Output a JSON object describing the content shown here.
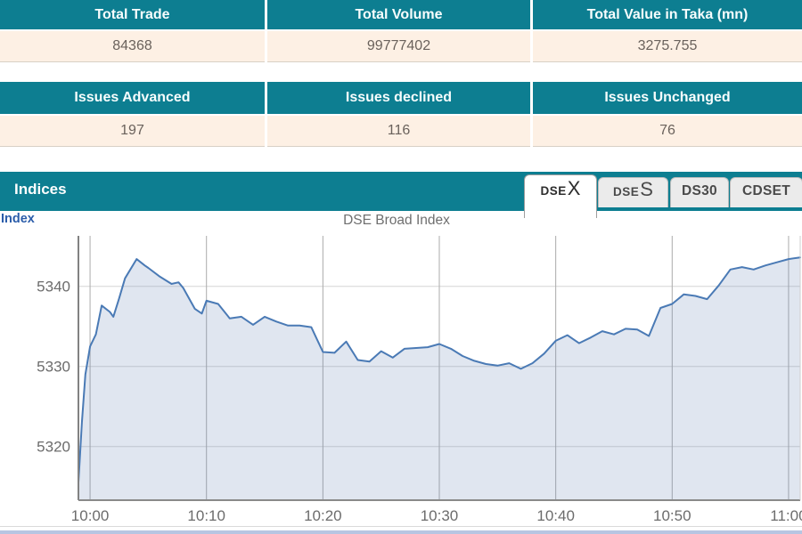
{
  "summary_table": {
    "headers": [
      "Total Trade",
      "Total Volume",
      "Total Value in Taka (mn)"
    ],
    "values": [
      "84368",
      "99777402",
      "3275.755"
    ]
  },
  "issues_table": {
    "headers": [
      "Issues Advanced",
      "Issues declined",
      "Issues Unchanged"
    ],
    "values": [
      "197",
      "116",
      "76"
    ]
  },
  "indices": {
    "title": "Indices",
    "index_label": "Index",
    "tabs": [
      {
        "small": "DSE",
        "large": "X",
        "active": true
      },
      {
        "small": "DSE",
        "large": "S",
        "active": false
      },
      {
        "small": "DS30",
        "large": "",
        "active": false
      },
      {
        "small": "CDSET",
        "large": "",
        "active": false
      }
    ]
  },
  "chart_data": {
    "type": "area",
    "title": "DSE Broad Index",
    "xlabel": "",
    "ylabel": "",
    "legend": false,
    "grid": true,
    "x_tick_labels": [
      "10:00",
      "10:10",
      "10:20",
      "10:30",
      "10:40",
      "10:50",
      "11:00"
    ],
    "x_tick_minutes": [
      0,
      10,
      20,
      30,
      40,
      50,
      60
    ],
    "y_ticks": [
      5320,
      5330,
      5340
    ],
    "ylim": [
      5313.3,
      5346.3
    ],
    "xlim_minutes": [
      -1,
      61
    ],
    "series": [
      {
        "name": "DSE Broad Index",
        "points": [
          [
            -1,
            5315.5
          ],
          [
            -0.7,
            5323.0
          ],
          [
            -0.4,
            5329.0
          ],
          [
            0,
            5332.5
          ],
          [
            0.5,
            5334.0
          ],
          [
            1,
            5337.6
          ],
          [
            1.7,
            5336.8
          ],
          [
            2,
            5336.2
          ],
          [
            2.5,
            5338.5
          ],
          [
            3,
            5341.0
          ],
          [
            4,
            5343.4
          ],
          [
            4.7,
            5342.6
          ],
          [
            5,
            5342.3
          ],
          [
            6,
            5341.2
          ],
          [
            7,
            5340.3
          ],
          [
            7.6,
            5340.5
          ],
          [
            8,
            5339.8
          ],
          [
            9,
            5337.2
          ],
          [
            9.6,
            5336.6
          ],
          [
            10,
            5338.2
          ],
          [
            11,
            5337.8
          ],
          [
            12,
            5336.0
          ],
          [
            13,
            5336.2
          ],
          [
            14,
            5335.2
          ],
          [
            15,
            5336.2
          ],
          [
            16,
            5335.6
          ],
          [
            17,
            5335.1
          ],
          [
            18,
            5335.1
          ],
          [
            19,
            5334.9
          ],
          [
            20,
            5331.8
          ],
          [
            21,
            5331.7
          ],
          [
            22,
            5333.1
          ],
          [
            23,
            5330.8
          ],
          [
            24,
            5330.6
          ],
          [
            25,
            5331.9
          ],
          [
            26,
            5331.1
          ],
          [
            27,
            5332.2
          ],
          [
            28,
            5332.3
          ],
          [
            29,
            5332.4
          ],
          [
            30,
            5332.8
          ],
          [
            31,
            5332.2
          ],
          [
            32,
            5331.3
          ],
          [
            33,
            5330.7
          ],
          [
            34,
            5330.3
          ],
          [
            35,
            5330.1
          ],
          [
            36,
            5330.4
          ],
          [
            37,
            5329.7
          ],
          [
            38,
            5330.4
          ],
          [
            39,
            5331.6
          ],
          [
            40,
            5333.2
          ],
          [
            41,
            5333.9
          ],
          [
            42,
            5332.9
          ],
          [
            43,
            5333.6
          ],
          [
            44,
            5334.4
          ],
          [
            45,
            5334.0
          ],
          [
            46,
            5334.7
          ],
          [
            47,
            5334.6
          ],
          [
            48,
            5333.8
          ],
          [
            49,
            5337.3
          ],
          [
            50,
            5337.8
          ],
          [
            51,
            5339.0
          ],
          [
            52,
            5338.8
          ],
          [
            53,
            5338.4
          ],
          [
            54,
            5340.1
          ],
          [
            55,
            5342.1
          ],
          [
            56,
            5342.4
          ],
          [
            57,
            5342.1
          ],
          [
            58,
            5342.6
          ],
          [
            59,
            5343.0
          ],
          [
            60,
            5343.4
          ],
          [
            61,
            5343.6
          ]
        ]
      }
    ]
  },
  "colors": {
    "teal": "#0d7e91",
    "cream": "#fdf0e4",
    "tab_inactive_bg": "#ebebeb",
    "chart_line": "#4a7ab5",
    "chart_fill": "rgba(98,130,180,0.20)",
    "index_blue": "#2b5daa",
    "bottom_strip": "#b7c5e2"
  }
}
